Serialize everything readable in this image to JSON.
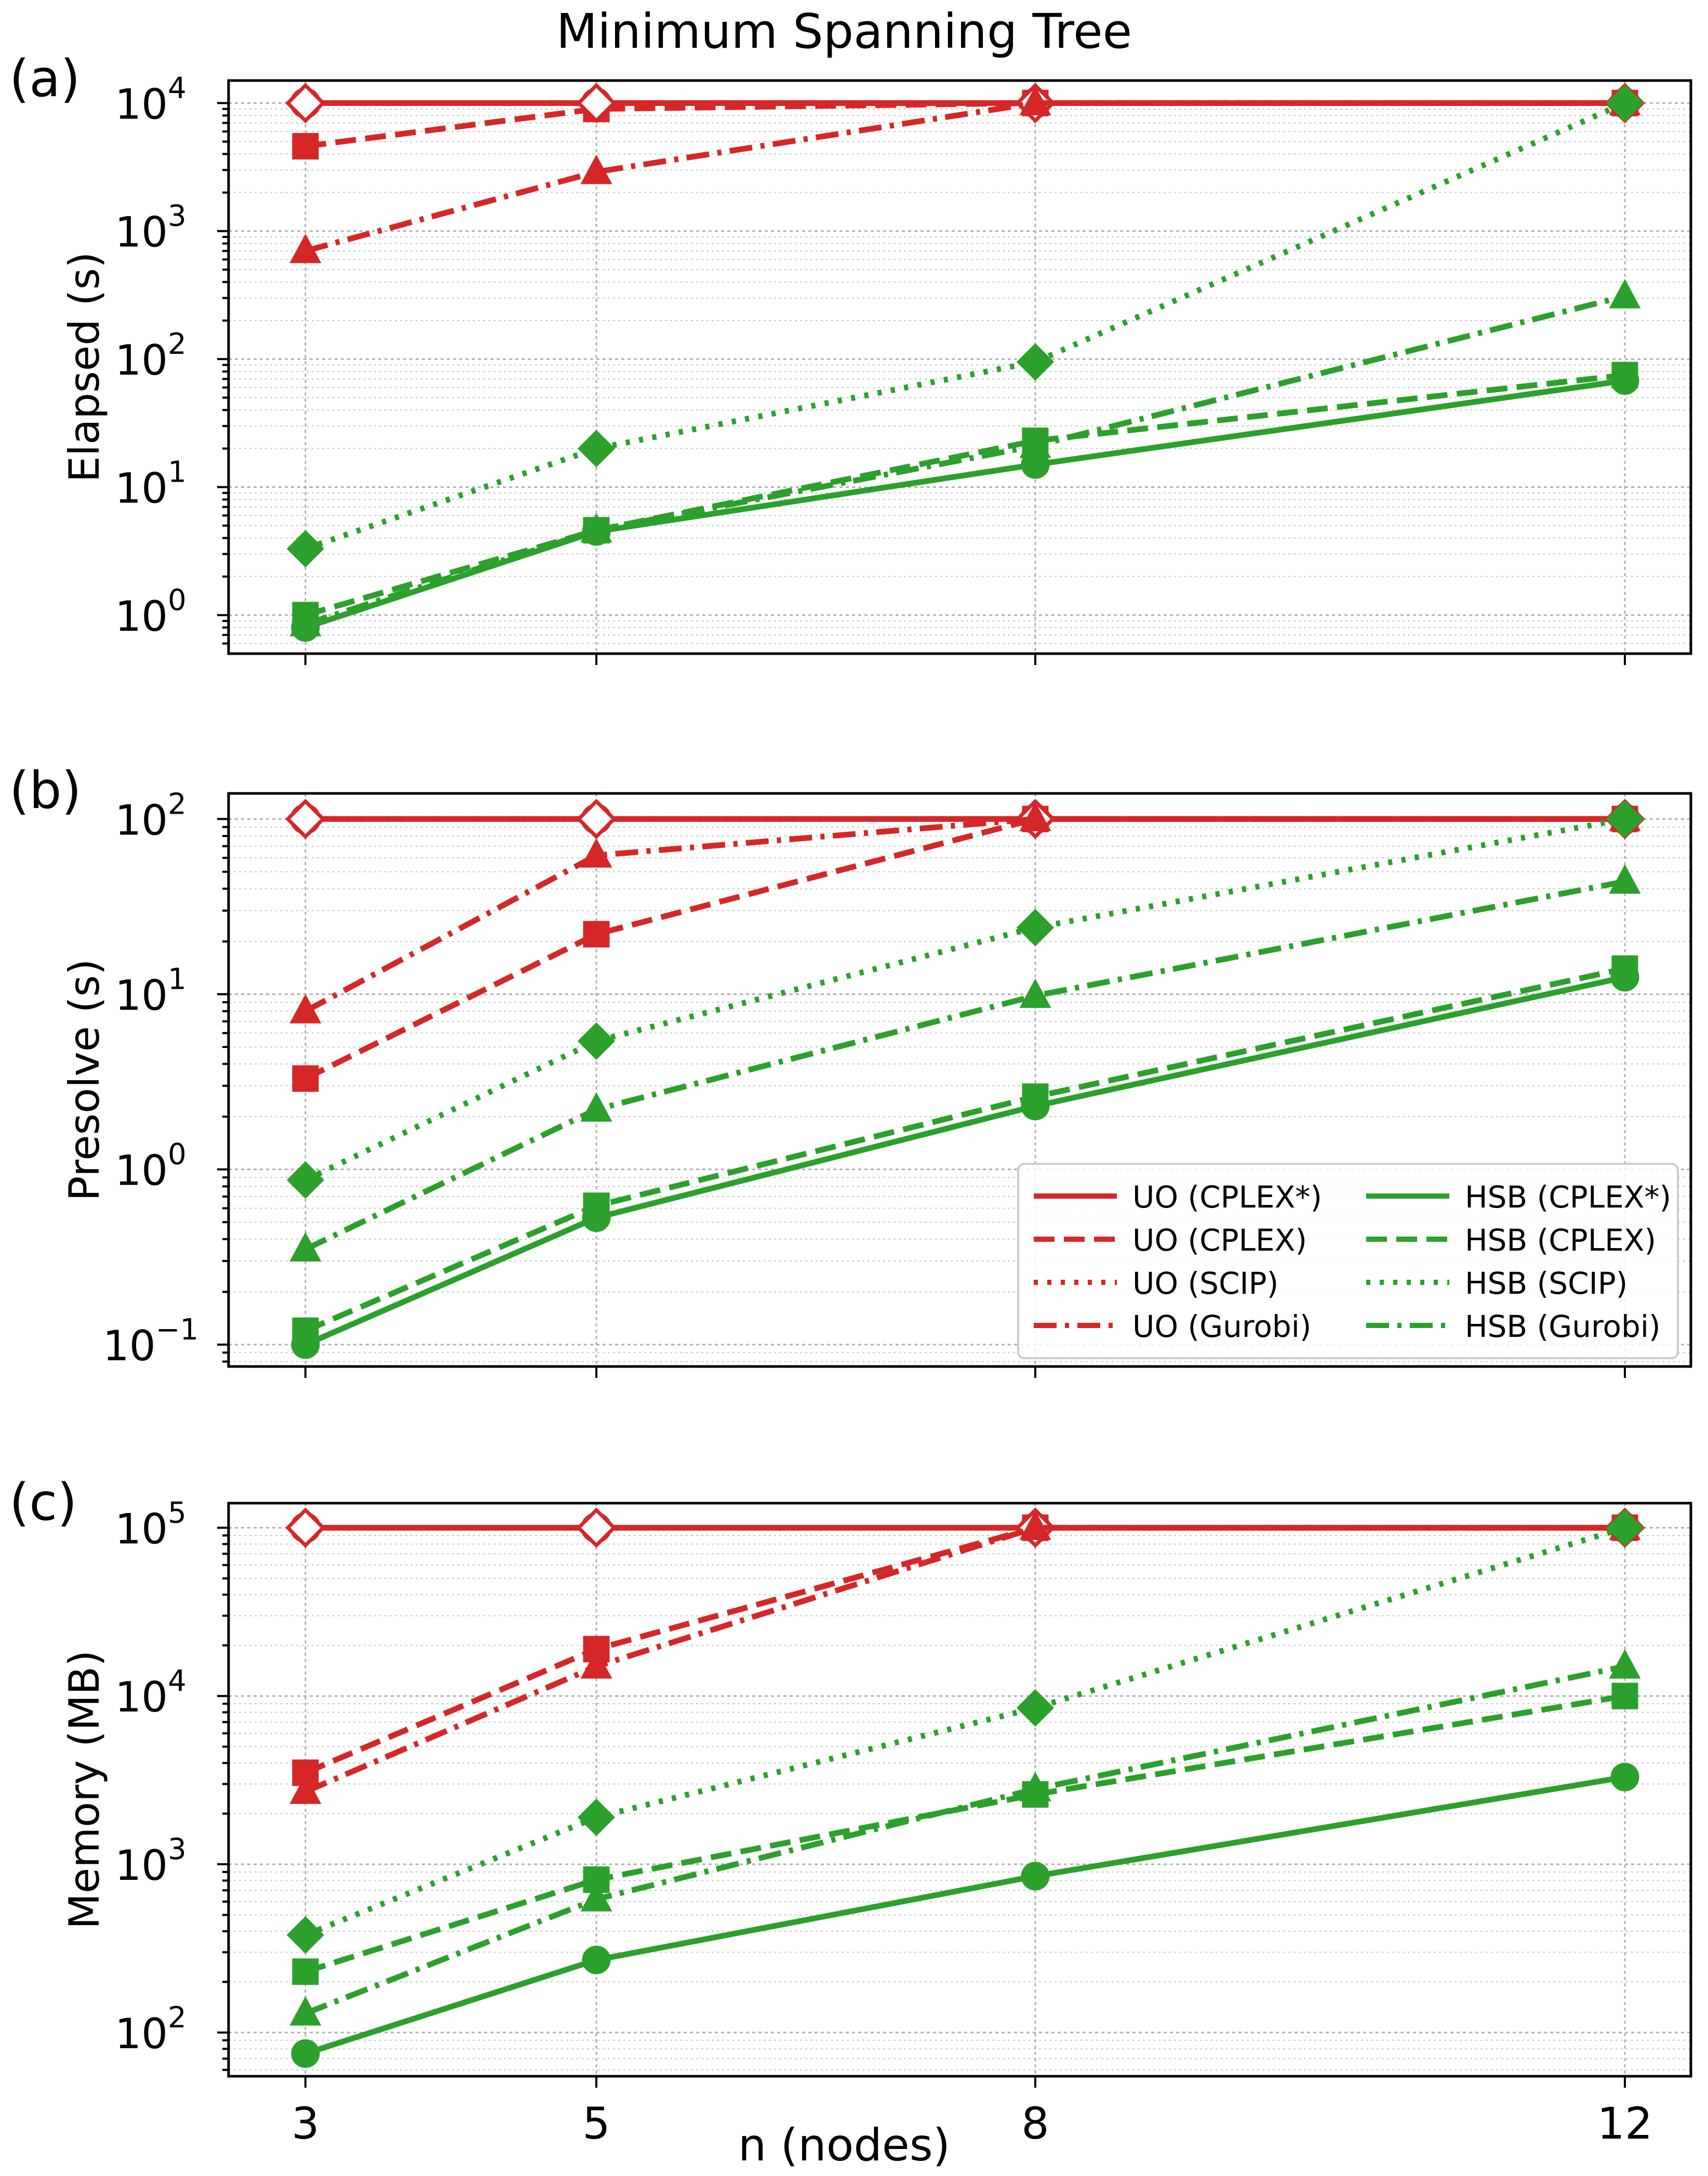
{
  "figure": {
    "title": "Minimum Spanning Tree",
    "xlabel": "n (nodes)"
  },
  "colors": {
    "UO": "#d62728",
    "HSB": "#2ca02c"
  },
  "legend": {
    "placement": "lower-right of panel (b)",
    "entries": [
      {
        "label": "UO (CPLEX*)",
        "group": "UO",
        "style": "solid"
      },
      {
        "label": "HSB (CPLEX*)",
        "group": "HSB",
        "style": "solid"
      },
      {
        "label": "UO (CPLEX)",
        "group": "UO",
        "style": "dashed"
      },
      {
        "label": "HSB (CPLEX)",
        "group": "HSB",
        "style": "dashed"
      },
      {
        "label": "UO (SCIP)",
        "group": "UO",
        "style": "dotted"
      },
      {
        "label": "HSB (SCIP)",
        "group": "HSB",
        "style": "dotted"
      },
      {
        "label": "UO (Gurobi)",
        "group": "UO",
        "style": "dashdot"
      },
      {
        "label": "HSB (Gurobi)",
        "group": "HSB",
        "style": "dashdot"
      }
    ]
  },
  "chart_data": [
    {
      "type": "line",
      "panel_label": "(a)",
      "ylabel": "Elapsed (s)",
      "yscale": "log",
      "ylim": [
        0.5,
        15000
      ],
      "yticks": [
        {
          "exp": "0"
        },
        {
          "exp": "1"
        },
        {
          "exp": "2"
        },
        {
          "exp": "3"
        },
        {
          "exp": "4"
        }
      ],
      "x": [
        3,
        5,
        8,
        12
      ],
      "xtick_labels": [
        "3",
        "5",
        "8",
        "12"
      ],
      "series": [
        {
          "name": "UO (CPLEX*)",
          "group": "UO",
          "style": "solid",
          "marker": "circle",
          "values": [
            10000,
            10000,
            10000,
            10000
          ]
        },
        {
          "name": "UO (CPLEX)",
          "group": "UO",
          "style": "dashed",
          "marker": "square",
          "values": [
            4600,
            9000,
            10000,
            10000
          ]
        },
        {
          "name": "UO (SCIP)",
          "group": "UO",
          "style": "dotted",
          "marker": "diamond",
          "values": [
            10000,
            10000,
            10000,
            10000
          ]
        },
        {
          "name": "UO (Gurobi)",
          "group": "UO",
          "style": "dashdot",
          "marker": "triangle",
          "values": [
            700,
            2900,
            10000,
            10000
          ]
        },
        {
          "name": "HSB (CPLEX*)",
          "group": "HSB",
          "style": "solid",
          "marker": "circle",
          "values": [
            0.8,
            4.5,
            15,
            68
          ]
        },
        {
          "name": "HSB (CPLEX)",
          "group": "HSB",
          "style": "dashed",
          "marker": "square",
          "values": [
            1.0,
            4.6,
            23,
            75
          ]
        },
        {
          "name": "HSB (SCIP)",
          "group": "HSB",
          "style": "dotted",
          "marker": "diamond",
          "values": [
            3.3,
            20,
            95,
            10000
          ]
        },
        {
          "name": "HSB (Gurobi)",
          "group": "HSB",
          "style": "dashdot",
          "marker": "triangle",
          "values": [
            0.85,
            4.6,
            21,
            310
          ]
        }
      ]
    },
    {
      "type": "line",
      "panel_label": "(b)",
      "ylabel": "Presolve (s)",
      "yscale": "log",
      "ylim": [
        0.075,
        140
      ],
      "yticks": [
        {
          "exp": "−1"
        },
        {
          "exp": "0"
        },
        {
          "exp": "1"
        },
        {
          "exp": "2"
        }
      ],
      "x": [
        3,
        5,
        8,
        12
      ],
      "xtick_labels": [
        "3",
        "5",
        "8",
        "12"
      ],
      "series": [
        {
          "name": "UO (CPLEX*)",
          "group": "UO",
          "style": "solid",
          "marker": "circle",
          "values": [
            100,
            100,
            100,
            100
          ]
        },
        {
          "name": "UO (CPLEX)",
          "group": "UO",
          "style": "dashed",
          "marker": "square",
          "values": [
            3.3,
            22,
            100,
            100
          ]
        },
        {
          "name": "UO (SCIP)",
          "group": "UO",
          "style": "dotted",
          "marker": "diamond",
          "values": [
            100,
            100,
            100,
            100
          ]
        },
        {
          "name": "UO (Gurobi)",
          "group": "UO",
          "style": "dashdot",
          "marker": "triangle",
          "values": [
            8,
            62,
            100,
            100
          ]
        },
        {
          "name": "HSB (CPLEX*)",
          "group": "HSB",
          "style": "solid",
          "marker": "circle",
          "values": [
            0.1,
            0.53,
            2.3,
            12.5
          ]
        },
        {
          "name": "HSB (CPLEX)",
          "group": "HSB",
          "style": "dashed",
          "marker": "square",
          "values": [
            0.12,
            0.62,
            2.6,
            14
          ]
        },
        {
          "name": "HSB (SCIP)",
          "group": "HSB",
          "style": "dotted",
          "marker": "diamond",
          "values": [
            0.87,
            5.4,
            24,
            100
          ]
        },
        {
          "name": "HSB (Gurobi)",
          "group": "HSB",
          "style": "dashdot",
          "marker": "triangle",
          "values": [
            0.35,
            2.2,
            9.8,
            44
          ]
        }
      ]
    },
    {
      "type": "line",
      "panel_label": "(c)",
      "ylabel": "Memory (MB)",
      "yscale": "log",
      "ylim": [
        55,
        140000
      ],
      "yticks": [
        {
          "exp": "2"
        },
        {
          "exp": "3"
        },
        {
          "exp": "4"
        },
        {
          "exp": "5"
        }
      ],
      "x": [
        3,
        5,
        8,
        12
      ],
      "xtick_labels": [
        "3",
        "5",
        "8",
        "12"
      ],
      "series": [
        {
          "name": "UO (CPLEX*)",
          "group": "UO",
          "style": "solid",
          "marker": "circle",
          "values": [
            100000,
            100000,
            100000,
            100000
          ]
        },
        {
          "name": "UO (CPLEX)",
          "group": "UO",
          "style": "dashed",
          "marker": "square",
          "values": [
            3500,
            19000,
            100000,
            100000
          ]
        },
        {
          "name": "UO (SCIP)",
          "group": "UO",
          "style": "dotted",
          "marker": "diamond",
          "values": [
            100000,
            100000,
            100000,
            100000
          ]
        },
        {
          "name": "UO (Gurobi)",
          "group": "UO",
          "style": "dashdot",
          "marker": "triangle",
          "values": [
            2700,
            15000,
            100000,
            100000
          ]
        },
        {
          "name": "HSB (CPLEX*)",
          "group": "HSB",
          "style": "solid",
          "marker": "circle",
          "values": [
            75,
            270,
            850,
            3300
          ]
        },
        {
          "name": "HSB (CPLEX)",
          "group": "HSB",
          "style": "dashed",
          "marker": "square",
          "values": [
            230,
            810,
            2600,
            10000
          ]
        },
        {
          "name": "HSB (SCIP)",
          "group": "HSB",
          "style": "dotted",
          "marker": "diamond",
          "values": [
            380,
            1900,
            8500,
            100000
          ]
        },
        {
          "name": "HSB (Gurobi)",
          "group": "HSB",
          "style": "dashdot",
          "marker": "triangle",
          "values": [
            130,
            620,
            2800,
            15000
          ]
        }
      ]
    }
  ]
}
